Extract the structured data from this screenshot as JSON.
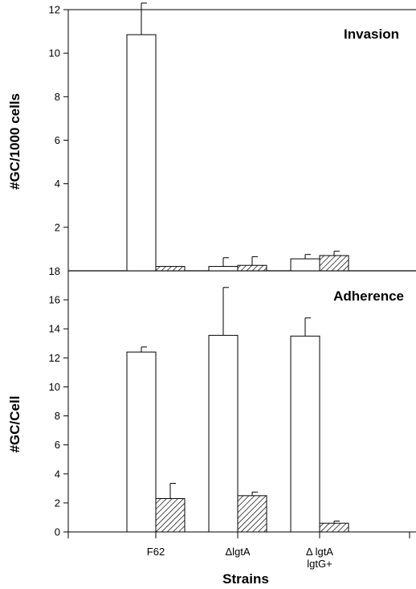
{
  "chart_data": [
    {
      "type": "bar",
      "title": "Invasion",
      "ylabel": "#GC/1000 cells",
      "ylim": [
        0,
        12
      ],
      "yticks": [
        2,
        4,
        6,
        8,
        10,
        12
      ],
      "ytick_labels": [
        "2",
        "4",
        "6",
        "8",
        "10",
        "12"
      ],
      "categories": [
        "F62",
        "ΔlgtA",
        "Δ lgtA lgtG+"
      ],
      "series": [
        {
          "fill": "open",
          "values": [
            10.85,
            0.2,
            0.55
          ],
          "errors": [
            1.45,
            0.4,
            0.2
          ]
        },
        {
          "fill": "hatched",
          "values": [
            0.2,
            0.25,
            0.7
          ],
          "errors": [
            0.0,
            0.4,
            0.2
          ]
        }
      ]
    },
    {
      "type": "bar",
      "title": "Adherence",
      "ylabel": "#GC/Cell",
      "xlabel": "Strains",
      "ylim": [
        0,
        18
      ],
      "yticks": [
        0,
        2,
        4,
        6,
        8,
        10,
        12,
        14,
        16
      ],
      "ytick_labels": [
        "0",
        "2",
        "4",
        "6",
        "8",
        "10",
        "12",
        "14",
        "16"
      ],
      "top_tick_label": "18",
      "categories": [
        "F62",
        "ΔlgtA",
        "Δ lgtA lgtG+"
      ],
      "category_lines": [
        [
          "F62"
        ],
        [
          "ΔlgtA"
        ],
        [
          "Δ lgtA",
          "lgtG+"
        ]
      ],
      "series": [
        {
          "fill": "open",
          "values": [
            12.4,
            13.55,
            13.5
          ],
          "errors": [
            0.35,
            3.3,
            1.25
          ]
        },
        {
          "fill": "hatched",
          "values": [
            2.3,
            2.5,
            0.6
          ],
          "errors": [
            1.05,
            0.25,
            0.15
          ]
        }
      ]
    }
  ]
}
